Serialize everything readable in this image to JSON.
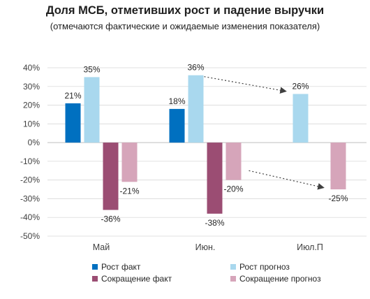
{
  "title": "Доля МСБ, отметивших рост и падение выручки",
  "subtitle": "(отмечаются фактические и ожидаемые изменения показателя)",
  "colors": {
    "growth_fact": "#0070c0",
    "growth_forecast": "#a9d8ee",
    "decline_fact": "#9b4d73",
    "decline_forecast": "#d6a5ba",
    "grid": "#d9d9d9",
    "axis_text": "#404040"
  },
  "chart_data": {
    "type": "bar",
    "categories": [
      "Май",
      "Июн.",
      "Июл.П"
    ],
    "series": [
      {
        "name": "Рост факт",
        "values": [
          21,
          18,
          null
        ],
        "labels": [
          "21%",
          "18%",
          ""
        ]
      },
      {
        "name": "Рост прогноз",
        "values": [
          35,
          36,
          26
        ],
        "labels": [
          "35%",
          "36%",
          "26%"
        ]
      },
      {
        "name": "Сокращение факт",
        "values": [
          -36,
          -38,
          null
        ],
        "labels": [
          "-36%",
          "-38%",
          ""
        ]
      },
      {
        "name": "Сокращение прогноз",
        "values": [
          -21,
          -20,
          -25
        ],
        "labels": [
          "-21%",
          "-20%",
          "-25%"
        ]
      }
    ],
    "ylim": [
      -50,
      40
    ],
    "yticks": [
      40,
      30,
      20,
      10,
      0,
      -10,
      -20,
      -30,
      -40,
      -50
    ],
    "ytick_labels": [
      "40%",
      "30%",
      "20%",
      "10%",
      "0%",
      "-10%",
      "-20%",
      "-30%",
      "-40%",
      "-50%"
    ],
    "grid": true,
    "legend_position": "bottom",
    "annotations": [
      {
        "type": "arrow",
        "from_category": "Июн.",
        "from_series": "Рост прогноз",
        "to_category": "Июл.П",
        "to_series": "Рост прогноз"
      },
      {
        "type": "arrow",
        "from_category": "Июн.",
        "from_series": "Сокращение прогноз",
        "to_category": "Июл.П",
        "to_series": "Сокращение прогноз"
      }
    ]
  }
}
